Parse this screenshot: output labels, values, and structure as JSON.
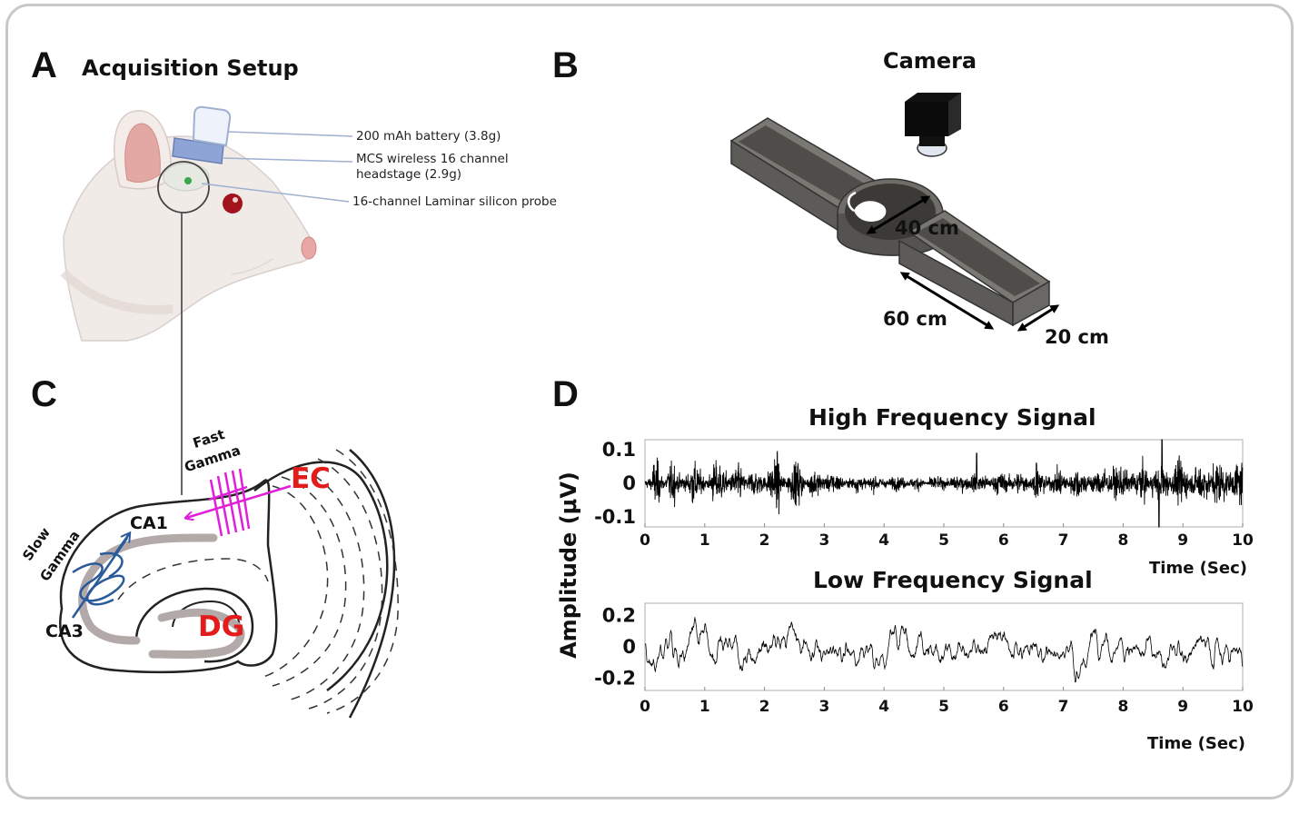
{
  "panels": {
    "a": {
      "letter": "A",
      "title": "Acquisition Setup"
    },
    "b": {
      "letter": "B",
      "title": "Camera"
    },
    "c": {
      "letter": "C"
    },
    "d": {
      "letter": "D"
    }
  },
  "callouts": {
    "battery": "200 mAh battery (3.8g)",
    "headstage_line1": "MCS wireless 16 channel",
    "headstage_line2": "headstage (2.9g)",
    "probe": "16-channel Laminar silicon probe"
  },
  "maze_dimensions": {
    "center": "40 cm",
    "arm_length": "60 cm",
    "arm_width": "20 cm"
  },
  "hippocampus": {
    "ca1": "CA1",
    "ca3": "CA3",
    "dg": "DG",
    "ec": "EC",
    "fast_gamma_line1": "Fast",
    "fast_gamma_line2": "Gamma",
    "slow_gamma_line1": "Slow",
    "slow_gamma_line2": "Gamma"
  },
  "colors": {
    "frame": "#c8c8c8",
    "fast_gamma": "#e020d8",
    "slow_gamma": "#2a5a9a",
    "region_text": "#e31b1b",
    "hippocampus_layer": "#b3a9a9",
    "maze": "#6f6d68",
    "eye": "#a2141b"
  },
  "chart_data": [
    {
      "type": "line",
      "title": "High Frequency Signal",
      "xlabel": "Time (Sec)",
      "ylabel": "Amplitude (μV)",
      "xlim": [
        0,
        10
      ],
      "ylim": [
        -0.13,
        0.13
      ],
      "x_ticks": [
        "0",
        "1",
        "2",
        "3",
        "4",
        "5",
        "6",
        "7",
        "8",
        "9",
        "10"
      ],
      "y_ticks": [
        "0.1",
        "0",
        "-0.1"
      ],
      "y_tick_values": [
        0.1,
        0,
        -0.1
      ],
      "series": [
        {
          "description_of_shape": "",
          "envelope": [
            0.02,
            0.06,
            0.03,
            0.055,
            0.025,
            0.04,
            0.06,
            0.035,
            0.03,
            0.055,
            0.06,
            0.03,
            0.05,
            0.035,
            0.04,
            0.03,
            0.05,
            0.07,
            0.03,
            0.05,
            0.06,
            0.025,
            0.04,
            0.03,
            0.035,
            0.03,
            0.02,
            0.018,
            0.025,
            0.02,
            0.022,
            0.018,
            0.02,
            0.018,
            0.02,
            0.015,
            0.018,
            0.015,
            0.02,
            0.015,
            0.02,
            0.025,
            0.022,
            0.03,
            0.025,
            0.03,
            0.025,
            0.03,
            0.035,
            0.03,
            0.035,
            0.03,
            0.04,
            0.035,
            0.03,
            0.04,
            0.035,
            0.045,
            0.035,
            0.04,
            0.035,
            0.045,
            0.05,
            0.04,
            0.045,
            0.04,
            0.05,
            0.045,
            0.04,
            0.055,
            0.045,
            0.06,
            0.05,
            0.045,
            0.06,
            0.05,
            0.07,
            0.055,
            0.05,
            0.06
          ]
        }
      ],
      "spikes": [
        {
          "x": 5.55,
          "y": 0.09
        },
        {
          "x": 6.55,
          "y": 0.06
        },
        {
          "x": 8.6,
          "y": -0.13
        },
        {
          "x": 8.65,
          "y": 0.14
        }
      ]
    },
    {
      "type": "line",
      "title": "Low Frequency Signal",
      "xlabel": "Time (Sec)",
      "ylabel": "",
      "xlim": [
        0,
        10
      ],
      "ylim": [
        -0.28,
        0.28
      ],
      "x_ticks": [
        "0",
        "1",
        "2",
        "3",
        "4",
        "5",
        "6",
        "7",
        "8",
        "9",
        "10"
      ],
      "y_ticks": [
        "0.2",
        "0",
        "-0.2"
      ],
      "y_tick_values": [
        0.2,
        0,
        -0.2
      ],
      "series": [
        {
          "envelope_amplitude": 0.12
        }
      ]
    }
  ]
}
